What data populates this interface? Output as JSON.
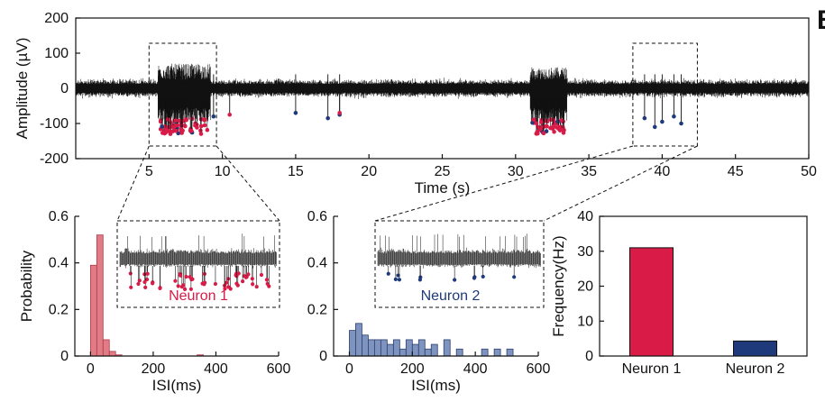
{
  "panel_letter": "B",
  "chart_data": [
    {
      "type": "line",
      "ylabel": "Amplitude (µV)",
      "xlabel": "Time (s)",
      "xlim": [
        0,
        50
      ],
      "ylim": [
        -200,
        200
      ],
      "xticks": [
        5,
        10,
        15,
        20,
        25,
        30,
        35,
        40,
        45,
        50
      ],
      "yticks": [
        200,
        100,
        0,
        -100,
        -200
      ],
      "noise_band": [
        -30,
        30
      ],
      "bursts": [
        {
          "start": 5.6,
          "end": 9.2,
          "min": -130,
          "max": 70,
          "neuron": "Neuron 1"
        },
        {
          "start": 31.0,
          "end": 33.5,
          "min": -130,
          "max": 60,
          "neuron": "Neuron 1"
        }
      ],
      "sparse_spikes_neuron2": [
        {
          "t": 9.4,
          "y": -80
        },
        {
          "t": 15.0,
          "y": -70
        },
        {
          "t": 17.2,
          "y": -85
        },
        {
          "t": 18.0,
          "y": -75
        },
        {
          "t": 38.8,
          "y": -85
        },
        {
          "t": 39.5,
          "y": -110
        },
        {
          "t": 40.0,
          "y": -95
        },
        {
          "t": 40.8,
          "y": -80
        },
        {
          "t": 41.3,
          "y": -100
        }
      ],
      "sparse_spikes_neuron1": [
        {
          "t": 10.5,
          "y": -75
        },
        {
          "t": 18.0,
          "y": -70
        }
      ],
      "zoom_boxes": [
        {
          "from": 5,
          "to": 9.6,
          "target": "ISI Neuron 1"
        },
        {
          "from": 38,
          "to": 42.4,
          "target": "ISI Neuron 2"
        }
      ],
      "colors": {
        "signal": "#111111",
        "neuron1": "#d81b47",
        "neuron2": "#1f3a7a"
      }
    },
    {
      "type": "bar",
      "name": "Neuron 1",
      "xlabel": "ISI(ms)",
      "ylabel": "Probability",
      "xlim": [
        -50,
        600
      ],
      "ylim": [
        0,
        0.6
      ],
      "xticks": [
        0,
        200,
        400,
        600
      ],
      "yticks": [
        0,
        0.2,
        0.4,
        0.6
      ],
      "bin_width": 20,
      "bins": [
        {
          "x": 0,
          "value": 0.39
        },
        {
          "x": 20,
          "value": 0.52
        },
        {
          "x": 40,
          "value": 0.07
        },
        {
          "x": 60,
          "value": 0.02
        },
        {
          "x": 80,
          "value": 0.005
        },
        {
          "x": 340,
          "value": 0.005
        }
      ],
      "inset_label": "Neuron 1",
      "color": "#e17b86",
      "edge": "#b03a48"
    },
    {
      "type": "bar",
      "name": "Neuron 2",
      "xlabel": "ISI(ms)",
      "ylabel": "",
      "xlim": [
        -50,
        600
      ],
      "ylim": [
        0,
        0.6
      ],
      "xticks": [
        0,
        200,
        400,
        600
      ],
      "yticks": [
        0,
        0.2,
        0.4,
        0.6
      ],
      "bin_width": 20,
      "bins": [
        {
          "x": 0,
          "value": 0.11
        },
        {
          "x": 20,
          "value": 0.14
        },
        {
          "x": 40,
          "value": 0.09
        },
        {
          "x": 60,
          "value": 0.07
        },
        {
          "x": 80,
          "value": 0.07
        },
        {
          "x": 100,
          "value": 0.07
        },
        {
          "x": 120,
          "value": 0.05
        },
        {
          "x": 140,
          "value": 0.07
        },
        {
          "x": 160,
          "value": 0.03
        },
        {
          "x": 180,
          "value": 0.07
        },
        {
          "x": 200,
          "value": 0.05
        },
        {
          "x": 220,
          "value": 0.07
        },
        {
          "x": 240,
          "value": 0.03
        },
        {
          "x": 260,
          "value": 0.05
        },
        {
          "x": 300,
          "value": 0.07
        },
        {
          "x": 340,
          "value": 0.03
        },
        {
          "x": 420,
          "value": 0.03
        },
        {
          "x": 460,
          "value": 0.03
        },
        {
          "x": 500,
          "value": 0.03
        }
      ],
      "inset_label": "Neuron 2",
      "color": "#7f93bf",
      "edge": "#2c3e6e"
    },
    {
      "type": "bar",
      "ylabel": "Frequency(Hz)",
      "ylim": [
        0,
        40
      ],
      "yticks": [
        0,
        10,
        20,
        30,
        40
      ],
      "categories": [
        "Neuron 1",
        "Neuron 2"
      ],
      "values": [
        31,
        4.3
      ],
      "colors": [
        "#d81b47",
        "#1f3a7a"
      ]
    }
  ]
}
